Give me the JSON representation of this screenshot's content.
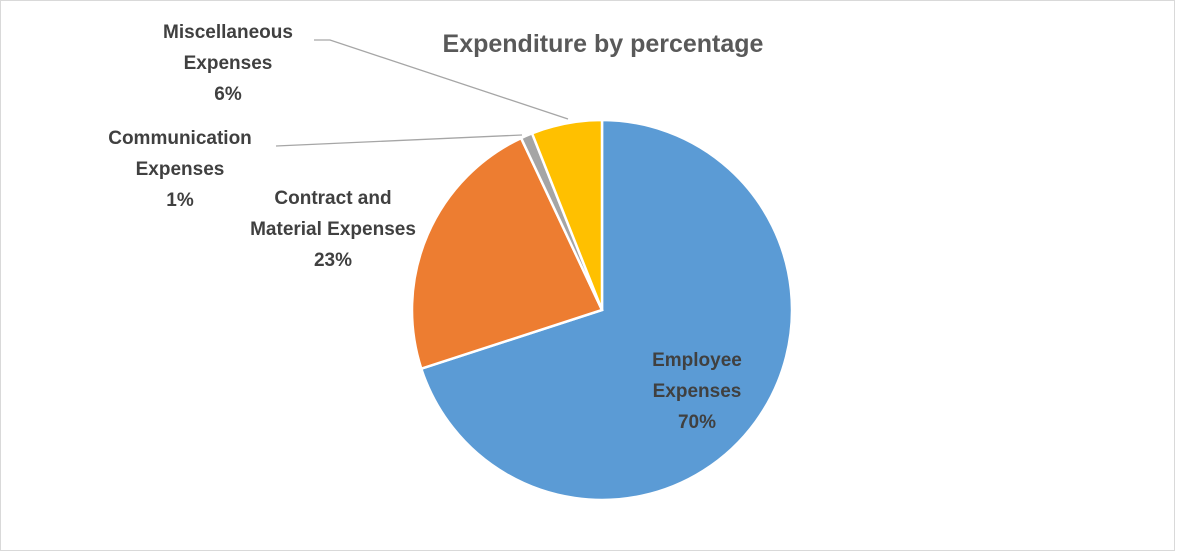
{
  "chart_data": {
    "type": "pie",
    "title": "Expenditure by percentage",
    "slices": [
      {
        "name": "Employee Expenses",
        "label_lines": [
          "Employee",
          "Expenses"
        ],
        "value": 70,
        "pct_label": "70%",
        "color": "#5b9bd5"
      },
      {
        "name": "Contract and Material Expenses",
        "label_lines": [
          "Contract and",
          "Material Expenses"
        ],
        "value": 23,
        "pct_label": "23%",
        "color": "#ed7d31"
      },
      {
        "name": "Communication Expenses",
        "label_lines": [
          "Communication",
          "Expenses"
        ],
        "value": 1,
        "pct_label": "1%",
        "color": "#a5a5a5"
      },
      {
        "name": "Miscellaneous Expenses",
        "label_lines": [
          "Miscellaneous",
          "Expenses"
        ],
        "value": 6,
        "pct_label": "6%",
        "color": "#ffc000"
      }
    ],
    "start_angle": "12 o'clock",
    "direction": "clockwise",
    "legend": "none"
  }
}
